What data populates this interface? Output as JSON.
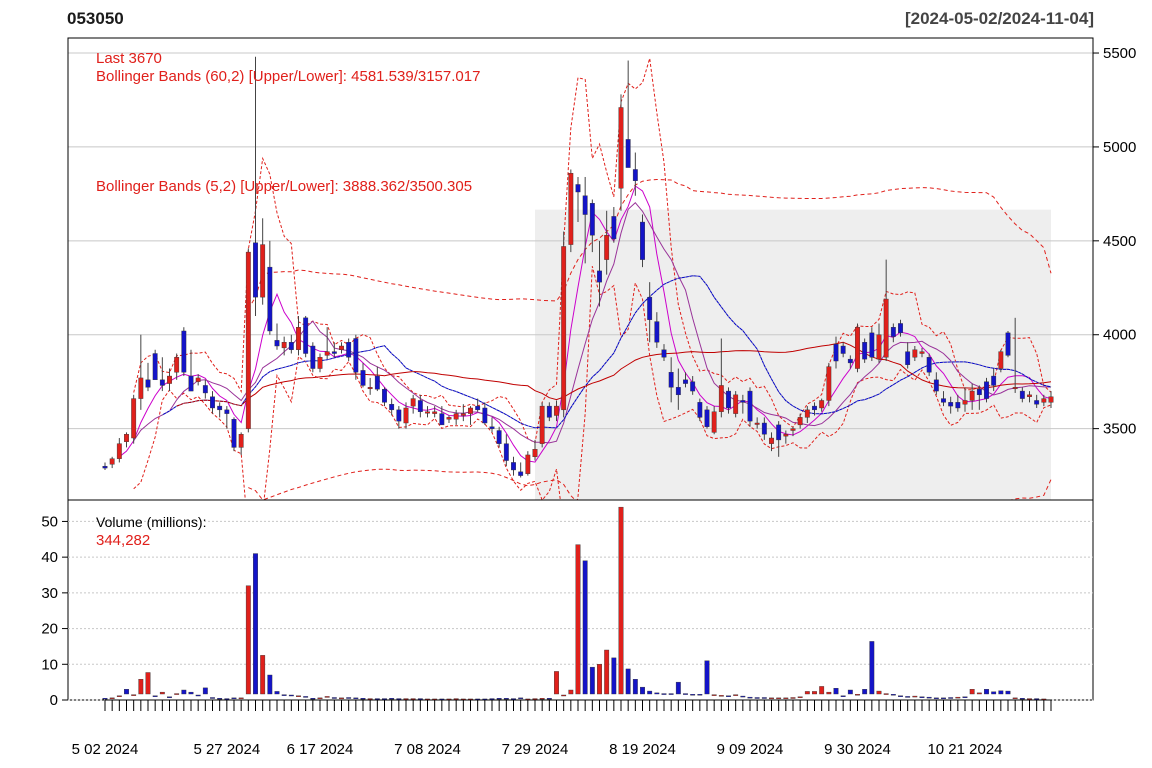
{
  "header": {
    "ticker": "053050",
    "date_range": "[2024-05-02/2024-11-04]"
  },
  "price_panel": {
    "last_label": "Last 3670",
    "bb60_label": "Bollinger Bands (60,2) [Upper/Lower]: 4581.539/3157.017",
    "bb5_label": "Bollinger Bands (5,2) [Upper/Lower]: 3888.362/3500.305"
  },
  "volume_panel": {
    "title": "Volume (millions):",
    "last_value": "344,282"
  },
  "colors": {
    "up": "#e0201b",
    "down": "#1414c8",
    "annotation": "#e0201b",
    "shade": "#eeeeee",
    "grid": "#c8c8c8"
  },
  "chart_data": [
    {
      "type": "candlestick",
      "title": "053050",
      "x_range": [
        "2024-05-02",
        "2024-11-04"
      ],
      "ylim": [
        3120,
        5580
      ],
      "y_ticks": [
        3500,
        4000,
        4500,
        5000,
        5500
      ],
      "x_tick_labels": [
        "5 02 2024",
        "5 27 2024",
        "6 17 2024",
        "7 08 2024",
        "7 29 2024",
        "8 19 2024",
        "9 09 2024",
        "9 30 2024",
        "10 21 2024"
      ],
      "x_tick_index": [
        0,
        17,
        30,
        45,
        60,
        75,
        90,
        105,
        120
      ],
      "grid": true,
      "shaded_region_start_index": 60,
      "candles": [
        {
          "o": 3300,
          "h": 3320,
          "l": 3280,
          "c": 3290
        },
        {
          "o": 3310,
          "h": 3350,
          "l": 3290,
          "c": 3340
        },
        {
          "o": 3340,
          "h": 3450,
          "l": 3320,
          "c": 3420
        },
        {
          "o": 3430,
          "h": 3480,
          "l": 3400,
          "c": 3470
        },
        {
          "o": 3450,
          "h": 3680,
          "l": 3420,
          "c": 3660
        },
        {
          "o": 3660,
          "h": 4000,
          "l": 3600,
          "c": 3770
        },
        {
          "o": 3760,
          "h": 3850,
          "l": 3700,
          "c": 3720
        },
        {
          "o": 3900,
          "h": 3920,
          "l": 3780,
          "c": 3760
        },
        {
          "o": 3760,
          "h": 3880,
          "l": 3700,
          "c": 3730
        },
        {
          "o": 3740,
          "h": 3820,
          "l": 3700,
          "c": 3780
        },
        {
          "o": 3800,
          "h": 3900,
          "l": 3760,
          "c": 3880
        },
        {
          "o": 4020,
          "h": 4040,
          "l": 3780,
          "c": 3800
        },
        {
          "o": 3780,
          "h": 3920,
          "l": 3720,
          "c": 3700
        },
        {
          "o": 3750,
          "h": 3790,
          "l": 3730,
          "c": 3770
        },
        {
          "o": 3730,
          "h": 3760,
          "l": 3660,
          "c": 3690
        },
        {
          "o": 3670,
          "h": 3700,
          "l": 3580,
          "c": 3610
        },
        {
          "o": 3620,
          "h": 3640,
          "l": 3560,
          "c": 3600
        },
        {
          "o": 3600,
          "h": 3620,
          "l": 3500,
          "c": 3580
        },
        {
          "o": 3550,
          "h": 3560,
          "l": 3380,
          "c": 3400
        },
        {
          "o": 3400,
          "h": 3480,
          "l": 3360,
          "c": 3470
        },
        {
          "o": 3500,
          "h": 4460,
          "l": 3480,
          "c": 4440
        },
        {
          "o": 4490,
          "h": 5480,
          "l": 4100,
          "c": 4200
        },
        {
          "o": 4200,
          "h": 4620,
          "l": 4160,
          "c": 4480
        },
        {
          "o": 4360,
          "h": 4500,
          "l": 4000,
          "c": 4020
        },
        {
          "o": 3970,
          "h": 4060,
          "l": 3920,
          "c": 3940
        },
        {
          "o": 3930,
          "h": 3990,
          "l": 3890,
          "c": 3960
        },
        {
          "o": 3960,
          "h": 4000,
          "l": 3900,
          "c": 3920
        },
        {
          "o": 3920,
          "h": 4100,
          "l": 3890,
          "c": 4040
        },
        {
          "o": 4090,
          "h": 4100,
          "l": 3880,
          "c": 3900
        },
        {
          "o": 3940,
          "h": 3960,
          "l": 3800,
          "c": 3820
        },
        {
          "o": 3820,
          "h": 3900,
          "l": 3800,
          "c": 3880
        },
        {
          "o": 3890,
          "h": 4040,
          "l": 3870,
          "c": 3910
        },
        {
          "o": 3910,
          "h": 3960,
          "l": 3880,
          "c": 3900
        },
        {
          "o": 3920,
          "h": 3960,
          "l": 3900,
          "c": 3940
        },
        {
          "o": 3960,
          "h": 3980,
          "l": 3860,
          "c": 3880
        },
        {
          "o": 3980,
          "h": 4000,
          "l": 3760,
          "c": 3800
        },
        {
          "o": 3810,
          "h": 3850,
          "l": 3720,
          "c": 3730
        },
        {
          "o": 3720,
          "h": 3770,
          "l": 3680,
          "c": 3720
        },
        {
          "o": 3780,
          "h": 3830,
          "l": 3700,
          "c": 3710
        },
        {
          "o": 3710,
          "h": 3720,
          "l": 3620,
          "c": 3640
        },
        {
          "o": 3630,
          "h": 3660,
          "l": 3570,
          "c": 3600
        },
        {
          "o": 3600,
          "h": 3620,
          "l": 3500,
          "c": 3540
        },
        {
          "o": 3530,
          "h": 3640,
          "l": 3500,
          "c": 3610
        },
        {
          "o": 3620,
          "h": 3680,
          "l": 3580,
          "c": 3660
        },
        {
          "o": 3650,
          "h": 3680,
          "l": 3560,
          "c": 3590
        },
        {
          "o": 3590,
          "h": 3620,
          "l": 3560,
          "c": 3590
        },
        {
          "o": 3580,
          "h": 3620,
          "l": 3560,
          "c": 3590
        },
        {
          "o": 3580,
          "h": 3620,
          "l": 3520,
          "c": 3520
        },
        {
          "o": 3550,
          "h": 3570,
          "l": 3530,
          "c": 3560
        },
        {
          "o": 3550,
          "h": 3600,
          "l": 3520,
          "c": 3580
        },
        {
          "o": 3570,
          "h": 3630,
          "l": 3540,
          "c": 3580
        },
        {
          "o": 3580,
          "h": 3620,
          "l": 3520,
          "c": 3610
        },
        {
          "o": 3620,
          "h": 3660,
          "l": 3590,
          "c": 3600
        },
        {
          "o": 3610,
          "h": 3640,
          "l": 3520,
          "c": 3530
        },
        {
          "o": 3510,
          "h": 3560,
          "l": 3480,
          "c": 3500
        },
        {
          "o": 3490,
          "h": 3510,
          "l": 3400,
          "c": 3420
        },
        {
          "o": 3420,
          "h": 3470,
          "l": 3300,
          "c": 3330
        },
        {
          "o": 3320,
          "h": 3350,
          "l": 3250,
          "c": 3280
        },
        {
          "o": 3270,
          "h": 3320,
          "l": 3240,
          "c": 3250
        },
        {
          "o": 3260,
          "h": 3380,
          "l": 3250,
          "c": 3360
        },
        {
          "o": 3350,
          "h": 3440,
          "l": 3330,
          "c": 3390
        },
        {
          "o": 3420,
          "h": 3640,
          "l": 3400,
          "c": 3620
        },
        {
          "o": 3620,
          "h": 3640,
          "l": 3540,
          "c": 3560
        },
        {
          "o": 3570,
          "h": 3650,
          "l": 3540,
          "c": 3620
        },
        {
          "o": 3600,
          "h": 4550,
          "l": 3560,
          "c": 4470
        },
        {
          "o": 4480,
          "h": 4880,
          "l": 4440,
          "c": 4860
        },
        {
          "o": 4800,
          "h": 4840,
          "l": 4600,
          "c": 4760
        },
        {
          "o": 4740,
          "h": 4840,
          "l": 4380,
          "c": 4640
        },
        {
          "o": 4700,
          "h": 4720,
          "l": 4440,
          "c": 4530
        },
        {
          "o": 4340,
          "h": 4500,
          "l": 4150,
          "c": 4280
        },
        {
          "o": 4400,
          "h": 4660,
          "l": 4320,
          "c": 4530
        },
        {
          "o": 4630,
          "h": 4680,
          "l": 4490,
          "c": 4510
        },
        {
          "o": 4780,
          "h": 5280,
          "l": 4660,
          "c": 5210
        },
        {
          "o": 5040,
          "h": 5460,
          "l": 4900,
          "c": 4890
        },
        {
          "o": 4880,
          "h": 4970,
          "l": 4740,
          "c": 4820
        },
        {
          "o": 4600,
          "h": 4640,
          "l": 4360,
          "c": 4400
        },
        {
          "o": 4200,
          "h": 4280,
          "l": 3960,
          "c": 4080
        },
        {
          "o": 4070,
          "h": 4120,
          "l": 3930,
          "c": 3960
        },
        {
          "o": 3920,
          "h": 3950,
          "l": 3860,
          "c": 3880
        },
        {
          "o": 3800,
          "h": 3880,
          "l": 3640,
          "c": 3720
        },
        {
          "o": 3720,
          "h": 3820,
          "l": 3600,
          "c": 3680
        },
        {
          "o": 3760,
          "h": 3800,
          "l": 3720,
          "c": 3740
        },
        {
          "o": 3750,
          "h": 3780,
          "l": 3680,
          "c": 3700
        },
        {
          "o": 3640,
          "h": 3660,
          "l": 3540,
          "c": 3560
        },
        {
          "o": 3600,
          "h": 3620,
          "l": 3500,
          "c": 3510
        },
        {
          "o": 3480,
          "h": 3620,
          "l": 3470,
          "c": 3590
        },
        {
          "o": 3590,
          "h": 3980,
          "l": 3560,
          "c": 3730
        },
        {
          "o": 3700,
          "h": 3720,
          "l": 3580,
          "c": 3610
        },
        {
          "o": 3580,
          "h": 3700,
          "l": 3560,
          "c": 3680
        },
        {
          "o": 3650,
          "h": 3680,
          "l": 3580,
          "c": 3640
        },
        {
          "o": 3700,
          "h": 3720,
          "l": 3510,
          "c": 3540
        },
        {
          "o": 3530,
          "h": 3560,
          "l": 3500,
          "c": 3530
        },
        {
          "o": 3530,
          "h": 3560,
          "l": 3440,
          "c": 3470
        },
        {
          "o": 3420,
          "h": 3480,
          "l": 3380,
          "c": 3450
        },
        {
          "o": 3520,
          "h": 3540,
          "l": 3350,
          "c": 3440
        },
        {
          "o": 3460,
          "h": 3490,
          "l": 3420,
          "c": 3470
        },
        {
          "o": 3490,
          "h": 3510,
          "l": 3460,
          "c": 3500
        },
        {
          "o": 3520,
          "h": 3580,
          "l": 3500,
          "c": 3560
        },
        {
          "o": 3560,
          "h": 3620,
          "l": 3530,
          "c": 3600
        },
        {
          "o": 3620,
          "h": 3640,
          "l": 3570,
          "c": 3600
        },
        {
          "o": 3610,
          "h": 3660,
          "l": 3590,
          "c": 3650
        },
        {
          "o": 3650,
          "h": 3850,
          "l": 3620,
          "c": 3830
        },
        {
          "o": 3950,
          "h": 3990,
          "l": 3820,
          "c": 3860
        },
        {
          "o": 3940,
          "h": 3960,
          "l": 3880,
          "c": 3900
        },
        {
          "o": 3870,
          "h": 3890,
          "l": 3820,
          "c": 3850
        },
        {
          "o": 3820,
          "h": 4060,
          "l": 3800,
          "c": 4040
        },
        {
          "o": 3960,
          "h": 3980,
          "l": 3850,
          "c": 3870
        },
        {
          "o": 4010,
          "h": 4040,
          "l": 3860,
          "c": 3880
        },
        {
          "o": 3870,
          "h": 4060,
          "l": 3850,
          "c": 4000
        },
        {
          "o": 3880,
          "h": 4400,
          "l": 3860,
          "c": 4190
        },
        {
          "o": 4040,
          "h": 4060,
          "l": 3960,
          "c": 3990
        },
        {
          "o": 4060,
          "h": 4080,
          "l": 3990,
          "c": 4010
        },
        {
          "o": 3910,
          "h": 3960,
          "l": 3820,
          "c": 3840
        },
        {
          "o": 3880,
          "h": 3940,
          "l": 3860,
          "c": 3920
        },
        {
          "o": 3900,
          "h": 3930,
          "l": 3880,
          "c": 3910
        },
        {
          "o": 3880,
          "h": 3900,
          "l": 3780,
          "c": 3800
        },
        {
          "o": 3760,
          "h": 3800,
          "l": 3680,
          "c": 3700
        },
        {
          "o": 3660,
          "h": 3700,
          "l": 3620,
          "c": 3640
        },
        {
          "o": 3640,
          "h": 3670,
          "l": 3580,
          "c": 3620
        },
        {
          "o": 3640,
          "h": 3680,
          "l": 3590,
          "c": 3610
        },
        {
          "o": 3630,
          "h": 3720,
          "l": 3590,
          "c": 3650
        },
        {
          "o": 3650,
          "h": 3740,
          "l": 3600,
          "c": 3700
        },
        {
          "o": 3710,
          "h": 3730,
          "l": 3600,
          "c": 3680
        },
        {
          "o": 3750,
          "h": 3770,
          "l": 3640,
          "c": 3660
        },
        {
          "o": 3780,
          "h": 3820,
          "l": 3700,
          "c": 3730
        },
        {
          "o": 3820,
          "h": 3920,
          "l": 3800,
          "c": 3910
        },
        {
          "o": 4010,
          "h": 4020,
          "l": 3880,
          "c": 3890
        },
        {
          "o": 3720,
          "h": 4090,
          "l": 3690,
          "c": 3720
        },
        {
          "o": 3700,
          "h": 3720,
          "l": 3640,
          "c": 3660
        },
        {
          "o": 3670,
          "h": 3700,
          "l": 3640,
          "c": 3680
        },
        {
          "o": 3650,
          "h": 3680,
          "l": 3610,
          "c": 3630
        },
        {
          "o": 3640,
          "h": 3680,
          "l": 3620,
          "c": 3660
        },
        {
          "o": 3640,
          "h": 3700,
          "l": 3610,
          "c": 3670
        }
      ]
    },
    {
      "type": "bar",
      "title": "Volume (millions):",
      "ylim": [
        0,
        56
      ],
      "y_ticks": [
        0,
        10,
        20,
        30,
        40,
        50
      ],
      "values": [
        0.5,
        0.6,
        1.2,
        3.0,
        1.5,
        5.8,
        7.7,
        1.2,
        2.2,
        0.9,
        1.8,
        2.8,
        2.2,
        1.4,
        3.4,
        0.7,
        0.5,
        0.4,
        0.6,
        0.6,
        32,
        41,
        12.5,
        7.0,
        2.4,
        1.5,
        1.4,
        1.2,
        1.0,
        0.5,
        0.6,
        1.0,
        0.7,
        0.6,
        0.7,
        0.6,
        0.5,
        0.4,
        0.4,
        0.4,
        0.5,
        0.4,
        0.4,
        0.4,
        0.4,
        0.3,
        0.3,
        0.3,
        0.3,
        0.4,
        0.3,
        0.3,
        0.3,
        0.3,
        0.4,
        0.5,
        0.5,
        0.4,
        0.6,
        0.3,
        0.4,
        0.5,
        0.5,
        8.0,
        1.4,
        2.8,
        43.5,
        39,
        9.2,
        10,
        14,
        11.8,
        54,
        8.7,
        5.8,
        3.6,
        2.5,
        2.0,
        1.8,
        1.8,
        5.0,
        1.8,
        1.6,
        1.6,
        11,
        1.5,
        1.3,
        1.2,
        1.5,
        1.1,
        0.8,
        0.7,
        0.7,
        0.6,
        0.6,
        0.6,
        0.7,
        0.9,
        2.4,
        2.4,
        3.8,
        2.2,
        3.3,
        1.2,
        2.8,
        1.6,
        3.0,
        16.4,
        2.5,
        1.8,
        1.6,
        1.2,
        1.0,
        1.1,
        0.9,
        0.8,
        0.6,
        0.6,
        0.7,
        0.8,
        0.9,
        3.0,
        2.0,
        3.0,
        2.3,
        2.6,
        2.5,
        0.6,
        0.5,
        0.4,
        0.4,
        0.3
      ],
      "bar_direction": [
        "d",
        "u",
        "u",
        "d",
        "u",
        "u",
        "u",
        "d",
        "u",
        "d",
        "u",
        "d",
        "d",
        "d",
        "d",
        "d",
        "d",
        "d",
        "d",
        "u",
        "u",
        "d",
        "u",
        "d",
        "d",
        "d",
        "d",
        "u",
        "d",
        "d",
        "u",
        "u",
        "d",
        "u",
        "d",
        "d",
        "d",
        "u",
        "d",
        "d",
        "d",
        "d",
        "u",
        "u",
        "d",
        "u",
        "u",
        "d",
        "u",
        "u",
        "u",
        "u",
        "d",
        "d",
        "d",
        "d",
        "d",
        "d",
        "d",
        "u",
        "u",
        "u",
        "d",
        "u",
        "u",
        "u",
        "u",
        "d",
        "d",
        "u",
        "u",
        "d",
        "u",
        "d",
        "d",
        "d",
        "d",
        "d",
        "d",
        "d",
        "d",
        "d",
        "d",
        "d",
        "d",
        "u",
        "u",
        "d",
        "u",
        "d",
        "d",
        "d",
        "d",
        "u",
        "u",
        "u",
        "u",
        "u",
        "u",
        "u",
        "u",
        "u",
        "d",
        "d",
        "d",
        "u",
        "d",
        "d",
        "u",
        "u",
        "d",
        "d",
        "d",
        "u",
        "d",
        "d",
        "d",
        "d",
        "d",
        "u",
        "d",
        "u",
        "u",
        "d",
        "d",
        "d",
        "d",
        "u",
        "d",
        "u",
        "d",
        "u",
        "u"
      ]
    }
  ]
}
